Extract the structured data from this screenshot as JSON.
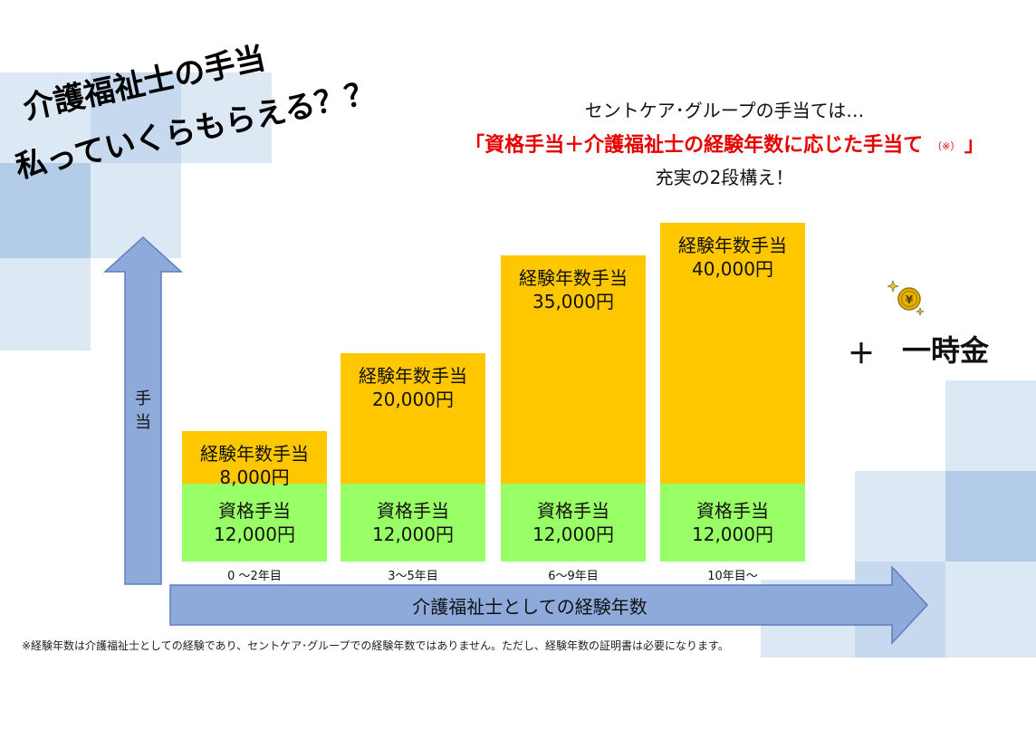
{
  "headline": {
    "line1": "介護福祉士の手当",
    "line2": "私っていくらもらえる？？"
  },
  "intro": {
    "line1": "セントケア･グループの手当ては…",
    "line2_open": "「資格手当＋介護福祉士の経験年数に応じた手当て",
    "line2_note": "（※）",
    "line2_close": "」",
    "line3": "充実の2段構え！"
  },
  "axes": {
    "y_label": [
      "手",
      "当"
    ],
    "x_label": "介護福祉士としての経験年数"
  },
  "colors": {
    "experience_allowance": "#ffc700",
    "qualification_allowance": "#99ff66",
    "arrow": "#8eaadb",
    "headline_accent": "#e60000"
  },
  "chart_data": {
    "type": "bar",
    "stacked": true,
    "categories": [
      "0 ～2年目",
      "3～5年目",
      "6～9年目",
      "10年目～"
    ],
    "series": [
      {
        "name": "資格手当",
        "values": [
          12000,
          12000,
          12000,
          12000
        ],
        "labels": [
          "12,000円",
          "12,000円",
          "12,000円",
          "12,000円"
        ]
      },
      {
        "name": "経験年数手当",
        "values": [
          8000,
          20000,
          35000,
          40000
        ],
        "labels": [
          "8,000円",
          "20,000円",
          "35,000円",
          "40,000円"
        ]
      }
    ],
    "ylim": [
      0,
      52000
    ]
  },
  "bonus": {
    "plus": "＋",
    "label": "一時金",
    "icon": "yen-coin-icon"
  },
  "footnote": "※経験年数は介護福祉士としての経験であり、セントケア･グループでの経験年数ではありません。ただし、経験年数の証明書は必要になります。"
}
